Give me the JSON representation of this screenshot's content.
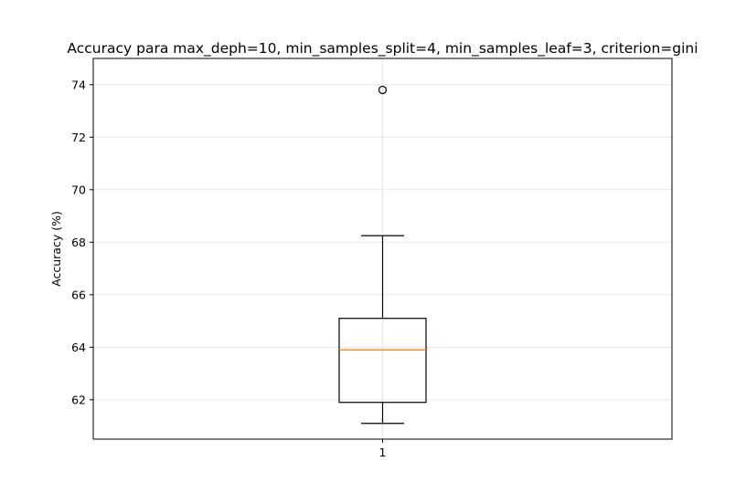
{
  "chart_data": {
    "type": "box",
    "title": "Accuracy para max_deph=10, min_samples_split=4, min_samples_leaf=3, criterion=gini",
    "xlabel": "",
    "ylabel": "Accuracy (%)",
    "categories": [
      "1"
    ],
    "ylim": [
      60.5,
      75.0
    ],
    "yticks": [
      62,
      64,
      66,
      68,
      70,
      72,
      74
    ],
    "grid": true,
    "boxes": [
      {
        "category": "1",
        "whisker_low": 61.1,
        "q1": 61.9,
        "median": 63.9,
        "q3": 65.1,
        "whisker_high": 68.25,
        "outliers": [
          73.8
        ]
      }
    ],
    "colors": {
      "box": "#000000",
      "median": "#ff7f0e",
      "grid": "#e6e6e6"
    }
  }
}
